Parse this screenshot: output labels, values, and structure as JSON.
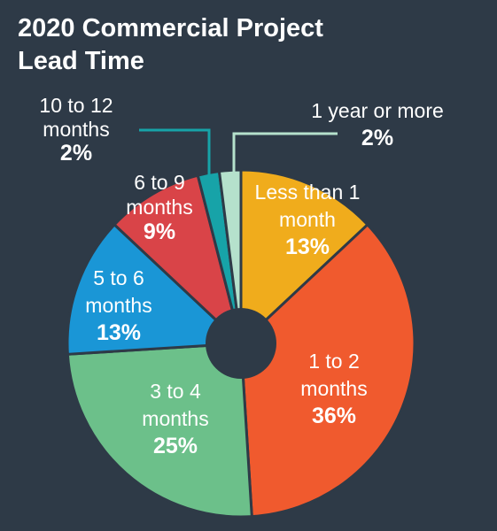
{
  "title_lines": [
    "2020 Commercial Project",
    "Lead Time"
  ],
  "chart_data": {
    "type": "pie",
    "style": "donut",
    "title": "2020 Commercial Project Lead Time",
    "slices": [
      {
        "label_lines": [
          "Less than 1",
          "month"
        ],
        "value": 13,
        "value_label": "13%",
        "color": "#f0ac1c"
      },
      {
        "label_lines": [
          "1 to 2",
          "months"
        ],
        "value": 36,
        "value_label": "36%",
        "color": "#f05a2e"
      },
      {
        "label_lines": [
          "3 to 4",
          "months"
        ],
        "value": 25,
        "value_label": "25%",
        "color": "#6cc08a"
      },
      {
        "label_lines": [
          "5 to 6",
          "months"
        ],
        "value": 13,
        "value_label": "13%",
        "color": "#1a96d6"
      },
      {
        "label_lines": [
          "6 to 9",
          "months"
        ],
        "value": 9,
        "value_label": "9%",
        "color": "#d94448"
      },
      {
        "label_lines": [
          "10 to 12",
          "months"
        ],
        "value": 2,
        "value_label": "2%",
        "color": "#17a3a8"
      },
      {
        "label_lines": [
          "1 year or more"
        ],
        "value": 2,
        "value_label": "2%",
        "color": "#b5e1cc"
      }
    ]
  }
}
